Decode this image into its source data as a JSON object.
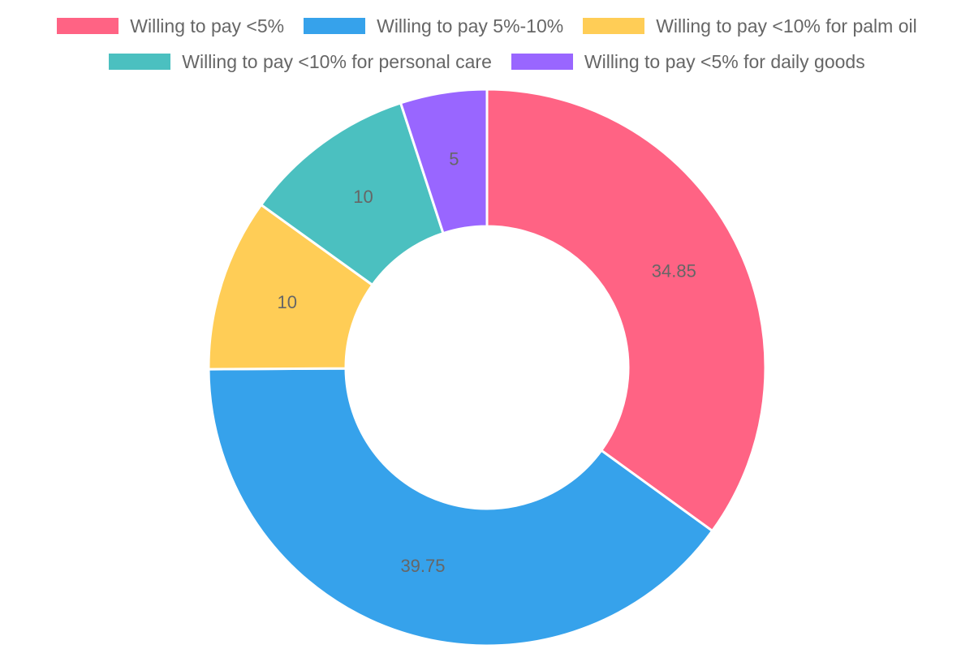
{
  "chart_data": {
    "type": "doughnut",
    "legend_position": "top",
    "series": [
      {
        "labels": [
          "Willing to pay <5%",
          "Willing to pay 5%-10%",
          "Willing to pay <10% for palm oil",
          "Willing to pay <10% for personal care",
          "Willing to pay <5% for daily goods"
        ],
        "values": [
          34.85,
          39.75,
          10,
          10,
          5
        ],
        "colors": [
          "#ff6384",
          "#36a2eb",
          "#ffcd56",
          "#4bc0c0",
          "#9966ff"
        ]
      }
    ]
  }
}
